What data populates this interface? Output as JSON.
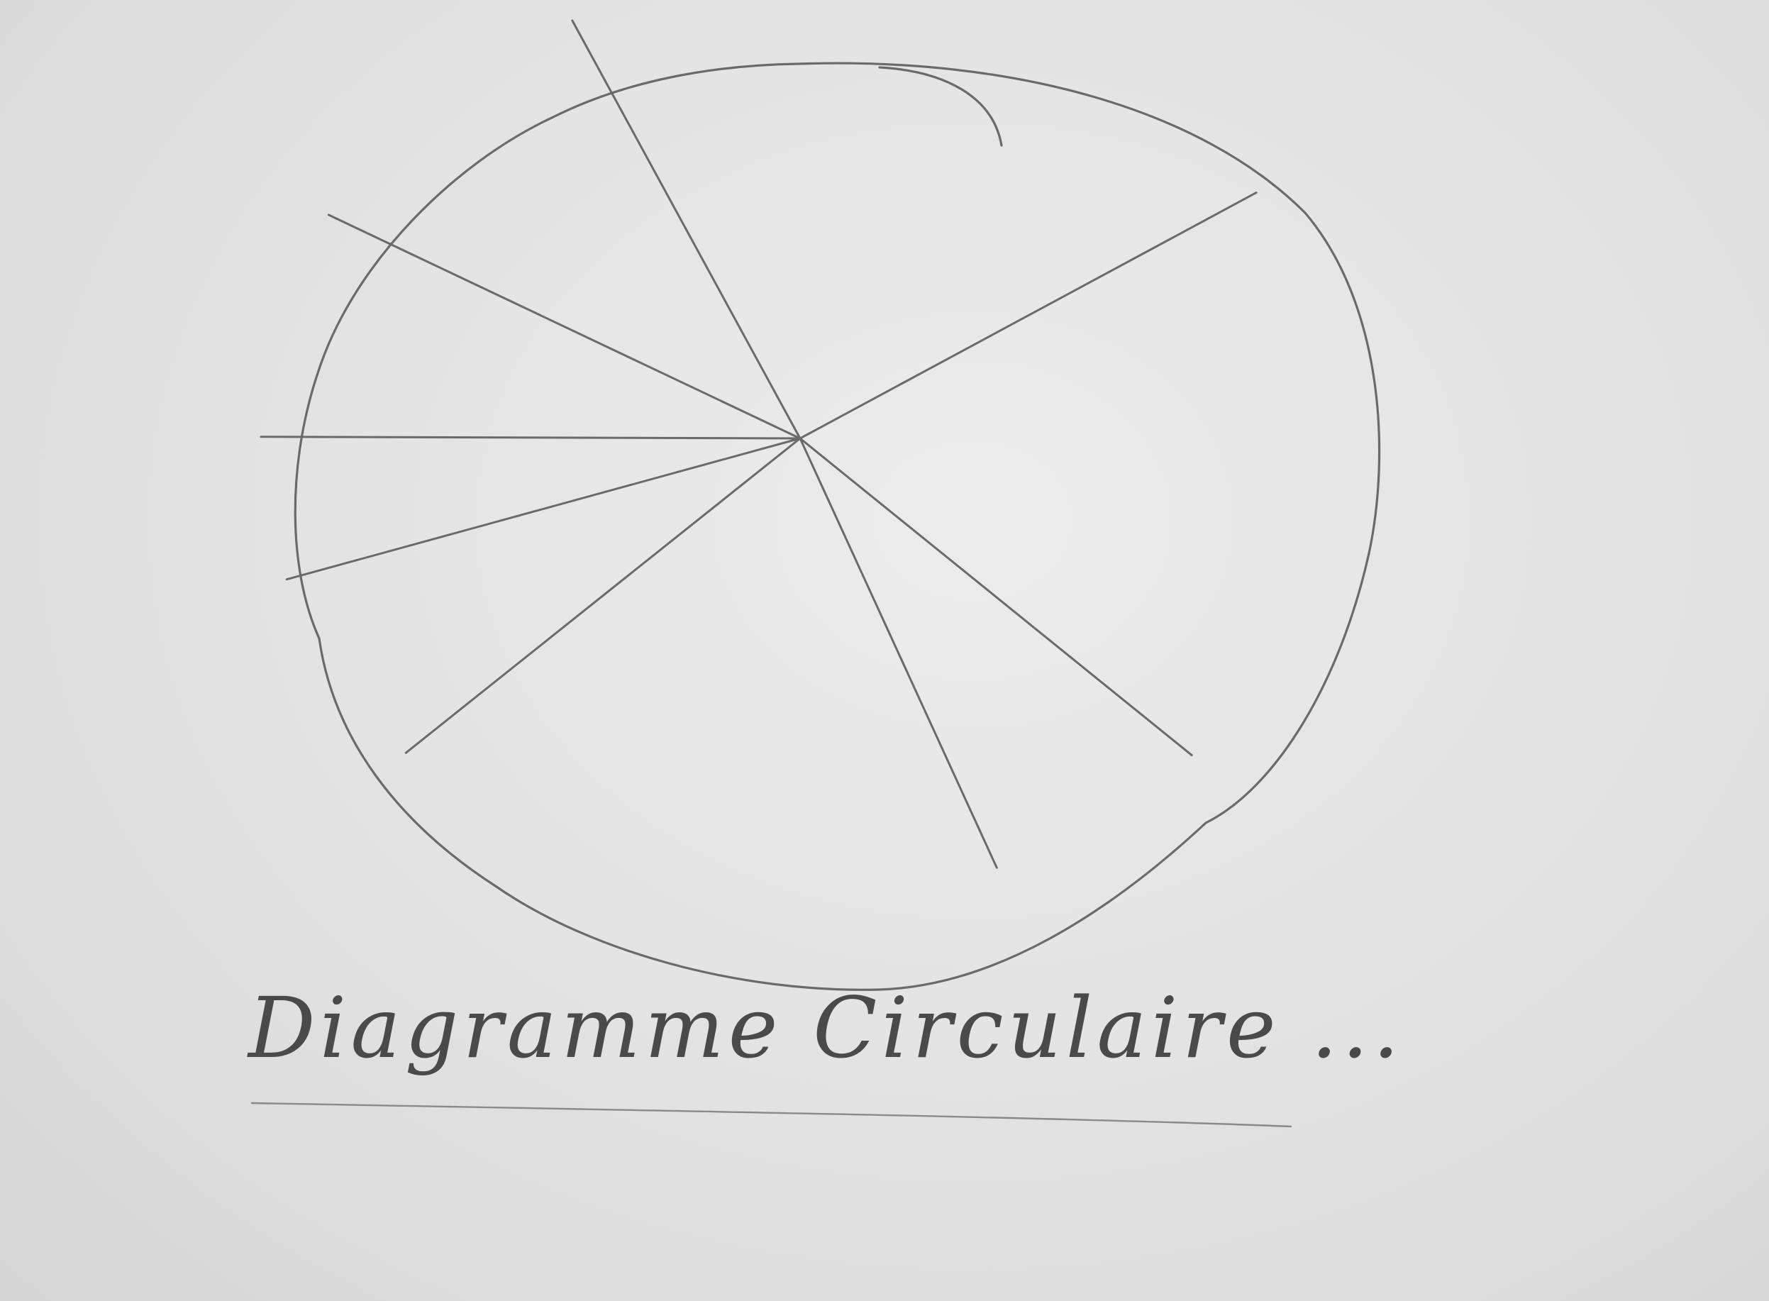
{
  "chart_data": {
    "type": "pie",
    "title": "Diagramme Circulaire ...",
    "slices": [
      {
        "value": 23
      },
      {
        "value": 21
      },
      {
        "value": 7
      },
      {
        "value": 19
      },
      {
        "value": 7
      },
      {
        "value": 5
      },
      {
        "value": 8
      },
      {
        "value": 10
      }
    ],
    "legend": "none",
    "colors": {
      "pencil": "#6a6a6a",
      "paper": "#e4e4e4"
    }
  }
}
